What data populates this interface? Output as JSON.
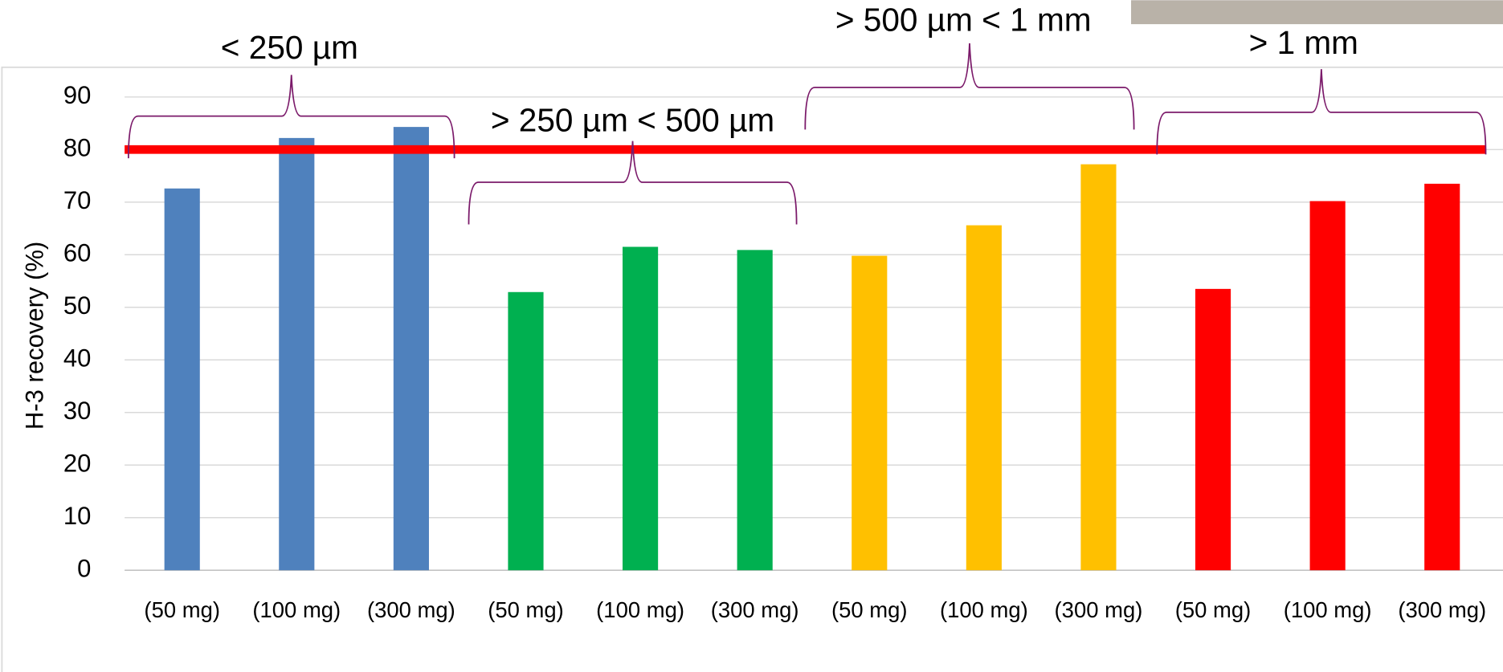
{
  "chart_data": {
    "type": "bar",
    "y_axis_label": "H-3 recovery (%)",
    "categories": [
      "(50 mg)",
      "(100 mg)",
      "(300 mg)",
      "(50 mg)",
      "(100 mg)",
      "(300 mg)",
      "(50 mg)",
      "(100 mg)",
      "(300 mg)",
      "(50 mg)",
      "(100 mg)",
      "(300 mg)"
    ],
    "groups": [
      {
        "name": "< 250 µm",
        "color": "#4f81bd",
        "values": [
          72.6,
          82.2,
          84.3
        ]
      },
      {
        "name": "> 250 µm < 500 µm",
        "color": "#00b050",
        "values": [
          52.9,
          61.5,
          60.9
        ]
      },
      {
        "name": "> 500 µm < 1 mm",
        "color": "#ffc000",
        "values": [
          59.8,
          65.6,
          77.2
        ]
      },
      {
        "name": "> 1 mm",
        "color": "#ff0000",
        "values": [
          53.5,
          70.2,
          73.5
        ]
      }
    ],
    "threshold": 80,
    "threshold_color": "#ff0000",
    "bracket_color": "#7b1a6a",
    "ylim": [
      0,
      90
    ],
    "yticks": [
      0,
      10,
      20,
      30,
      40,
      50,
      60,
      70,
      80,
      90
    ],
    "grid": true
  }
}
